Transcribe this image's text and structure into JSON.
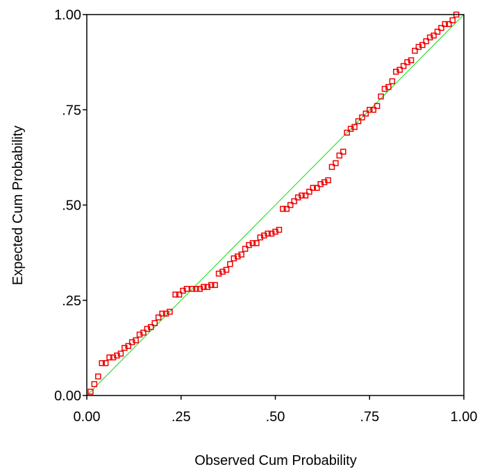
{
  "chart_data": {
    "type": "scatter",
    "xlabel": "Observed Cum Probability",
    "ylabel": "Expected Cum Probability",
    "xlim": [
      0,
      1
    ],
    "ylim": [
      0,
      1
    ],
    "grid": false,
    "x_ticks": [
      {
        "value": 0,
        "label": "0.00"
      },
      {
        "value": 0.25,
        "label": ".25"
      },
      {
        "value": 0.5,
        "label": ".50"
      },
      {
        "value": 0.75,
        "label": ".75"
      },
      {
        "value": 1,
        "label": "1.00"
      }
    ],
    "y_ticks": [
      {
        "value": 0,
        "label": "0.00"
      },
      {
        "value": 0.25,
        "label": ".25"
      },
      {
        "value": 0.5,
        "label": ".50"
      },
      {
        "value": 0.75,
        "label": ".75"
      },
      {
        "value": 1,
        "label": "1.00"
      }
    ],
    "reference_line": {
      "from": [
        0,
        0
      ],
      "to": [
        1,
        1
      ],
      "color": "#33dd33"
    },
    "point_color": "#ee0000",
    "points": [
      [
        0.01,
        0.01
      ],
      [
        0.02,
        0.03
      ],
      [
        0.03,
        0.05
      ],
      [
        0.04,
        0.085
      ],
      [
        0.05,
        0.085
      ],
      [
        0.06,
        0.1
      ],
      [
        0.07,
        0.1
      ],
      [
        0.08,
        0.105
      ],
      [
        0.09,
        0.11
      ],
      [
        0.1,
        0.125
      ],
      [
        0.11,
        0.13
      ],
      [
        0.12,
        0.14
      ],
      [
        0.13,
        0.145
      ],
      [
        0.14,
        0.16
      ],
      [
        0.15,
        0.165
      ],
      [
        0.16,
        0.175
      ],
      [
        0.17,
        0.18
      ],
      [
        0.18,
        0.19
      ],
      [
        0.19,
        0.205
      ],
      [
        0.2,
        0.215
      ],
      [
        0.21,
        0.215
      ],
      [
        0.22,
        0.22
      ],
      [
        0.235,
        0.265
      ],
      [
        0.245,
        0.265
      ],
      [
        0.255,
        0.275
      ],
      [
        0.265,
        0.28
      ],
      [
        0.28,
        0.28
      ],
      [
        0.29,
        0.28
      ],
      [
        0.3,
        0.28
      ],
      [
        0.31,
        0.285
      ],
      [
        0.32,
        0.285
      ],
      [
        0.33,
        0.29
      ],
      [
        0.34,
        0.29
      ],
      [
        0.35,
        0.32
      ],
      [
        0.36,
        0.325
      ],
      [
        0.37,
        0.33
      ],
      [
        0.38,
        0.345
      ],
      [
        0.39,
        0.36
      ],
      [
        0.4,
        0.365
      ],
      [
        0.41,
        0.37
      ],
      [
        0.42,
        0.385
      ],
      [
        0.43,
        0.395
      ],
      [
        0.44,
        0.4
      ],
      [
        0.45,
        0.4
      ],
      [
        0.46,
        0.415
      ],
      [
        0.47,
        0.42
      ],
      [
        0.48,
        0.425
      ],
      [
        0.49,
        0.425
      ],
      [
        0.5,
        0.43
      ],
      [
        0.51,
        0.435
      ],
      [
        0.52,
        0.49
      ],
      [
        0.53,
        0.49
      ],
      [
        0.54,
        0.5
      ],
      [
        0.55,
        0.51
      ],
      [
        0.56,
        0.52
      ],
      [
        0.57,
        0.525
      ],
      [
        0.58,
        0.525
      ],
      [
        0.59,
        0.535
      ],
      [
        0.6,
        0.545
      ],
      [
        0.61,
        0.545
      ],
      [
        0.62,
        0.555
      ],
      [
        0.63,
        0.56
      ],
      [
        0.64,
        0.565
      ],
      [
        0.65,
        0.6
      ],
      [
        0.66,
        0.61
      ],
      [
        0.67,
        0.63
      ],
      [
        0.68,
        0.64
      ],
      [
        0.69,
        0.69
      ],
      [
        0.7,
        0.7
      ],
      [
        0.71,
        0.705
      ],
      [
        0.72,
        0.72
      ],
      [
        0.73,
        0.73
      ],
      [
        0.74,
        0.74
      ],
      [
        0.75,
        0.75
      ],
      [
        0.76,
        0.75
      ],
      [
        0.77,
        0.76
      ],
      [
        0.78,
        0.785
      ],
      [
        0.79,
        0.805
      ],
      [
        0.8,
        0.81
      ],
      [
        0.81,
        0.825
      ],
      [
        0.82,
        0.85
      ],
      [
        0.83,
        0.855
      ],
      [
        0.84,
        0.865
      ],
      [
        0.85,
        0.875
      ],
      [
        0.86,
        0.88
      ],
      [
        0.87,
        0.905
      ],
      [
        0.88,
        0.915
      ],
      [
        0.89,
        0.92
      ],
      [
        0.9,
        0.93
      ],
      [
        0.91,
        0.94
      ],
      [
        0.92,
        0.945
      ],
      [
        0.93,
        0.955
      ],
      [
        0.94,
        0.965
      ],
      [
        0.95,
        0.975
      ],
      [
        0.96,
        0.975
      ],
      [
        0.97,
        0.985
      ],
      [
        0.98,
        1.0
      ]
    ]
  }
}
